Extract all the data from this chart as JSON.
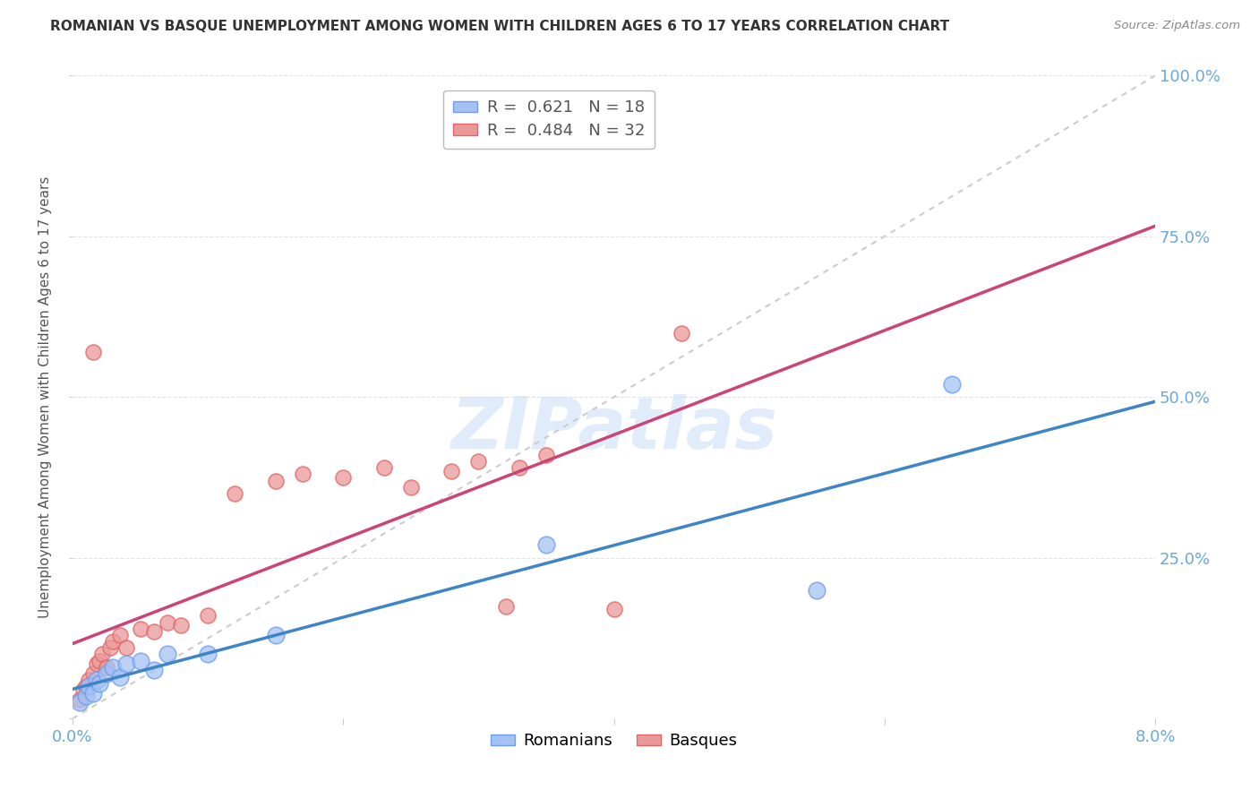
{
  "title": "ROMANIAN VS BASQUE UNEMPLOYMENT AMONG WOMEN WITH CHILDREN AGES 6 TO 17 YEARS CORRELATION CHART",
  "source": "Source: ZipAtlas.com",
  "ylabel": "Unemployment Among Women with Children Ages 6 to 17 years",
  "legend1_r": "0.621",
  "legend1_n": "18",
  "legend2_r": "0.484",
  "legend2_n": "32",
  "xlim": [
    0.0,
    8.0
  ],
  "ylim": [
    0.0,
    100.0
  ],
  "blue_color": "#a4c2f4",
  "blue_edge_color": "#6d9eeb",
  "pink_color": "#ea9999",
  "pink_edge_color": "#e06666",
  "blue_line_color": "#3d85c8",
  "pink_line_color": "#cc4477",
  "dashed_line_color": "#cccccc",
  "watermark": "ZIPatlas",
  "background_color": "#ffffff",
  "grid_color": "#dddddd",
  "axis_label_color": "#6aa8d8",
  "title_color": "#333333",
  "source_color": "#888888",
  "romanians_x": [
    0.05,
    0.1,
    0.12,
    0.15,
    0.18,
    0.2,
    0.25,
    0.3,
    0.35,
    0.4,
    0.5,
    0.6,
    0.7,
    1.0,
    1.5,
    3.5,
    5.5,
    6.5
  ],
  "romanians_y": [
    2.5,
    3.5,
    5.0,
    4.0,
    6.0,
    5.5,
    7.0,
    8.0,
    6.5,
    8.5,
    9.0,
    7.5,
    10.0,
    10.0,
    13.0,
    27.0,
    20.0,
    52.0
  ],
  "basques_x": [
    0.05,
    0.08,
    0.1,
    0.12,
    0.15,
    0.18,
    0.2,
    0.22,
    0.25,
    0.28,
    0.3,
    0.35,
    0.4,
    0.5,
    0.6,
    0.7,
    0.8,
    1.0,
    1.2,
    1.5,
    1.7,
    2.0,
    2.3,
    2.5,
    2.8,
    3.0,
    3.3,
    3.5,
    4.0,
    4.5,
    0.15,
    3.2
  ],
  "basques_y": [
    3.0,
    4.5,
    5.0,
    6.0,
    7.0,
    8.5,
    9.0,
    10.0,
    8.0,
    11.0,
    12.0,
    13.0,
    11.0,
    14.0,
    13.5,
    15.0,
    14.5,
    16.0,
    35.0,
    37.0,
    38.0,
    37.5,
    39.0,
    36.0,
    38.5,
    40.0,
    39.0,
    41.0,
    17.0,
    60.0,
    57.0,
    17.5
  ]
}
